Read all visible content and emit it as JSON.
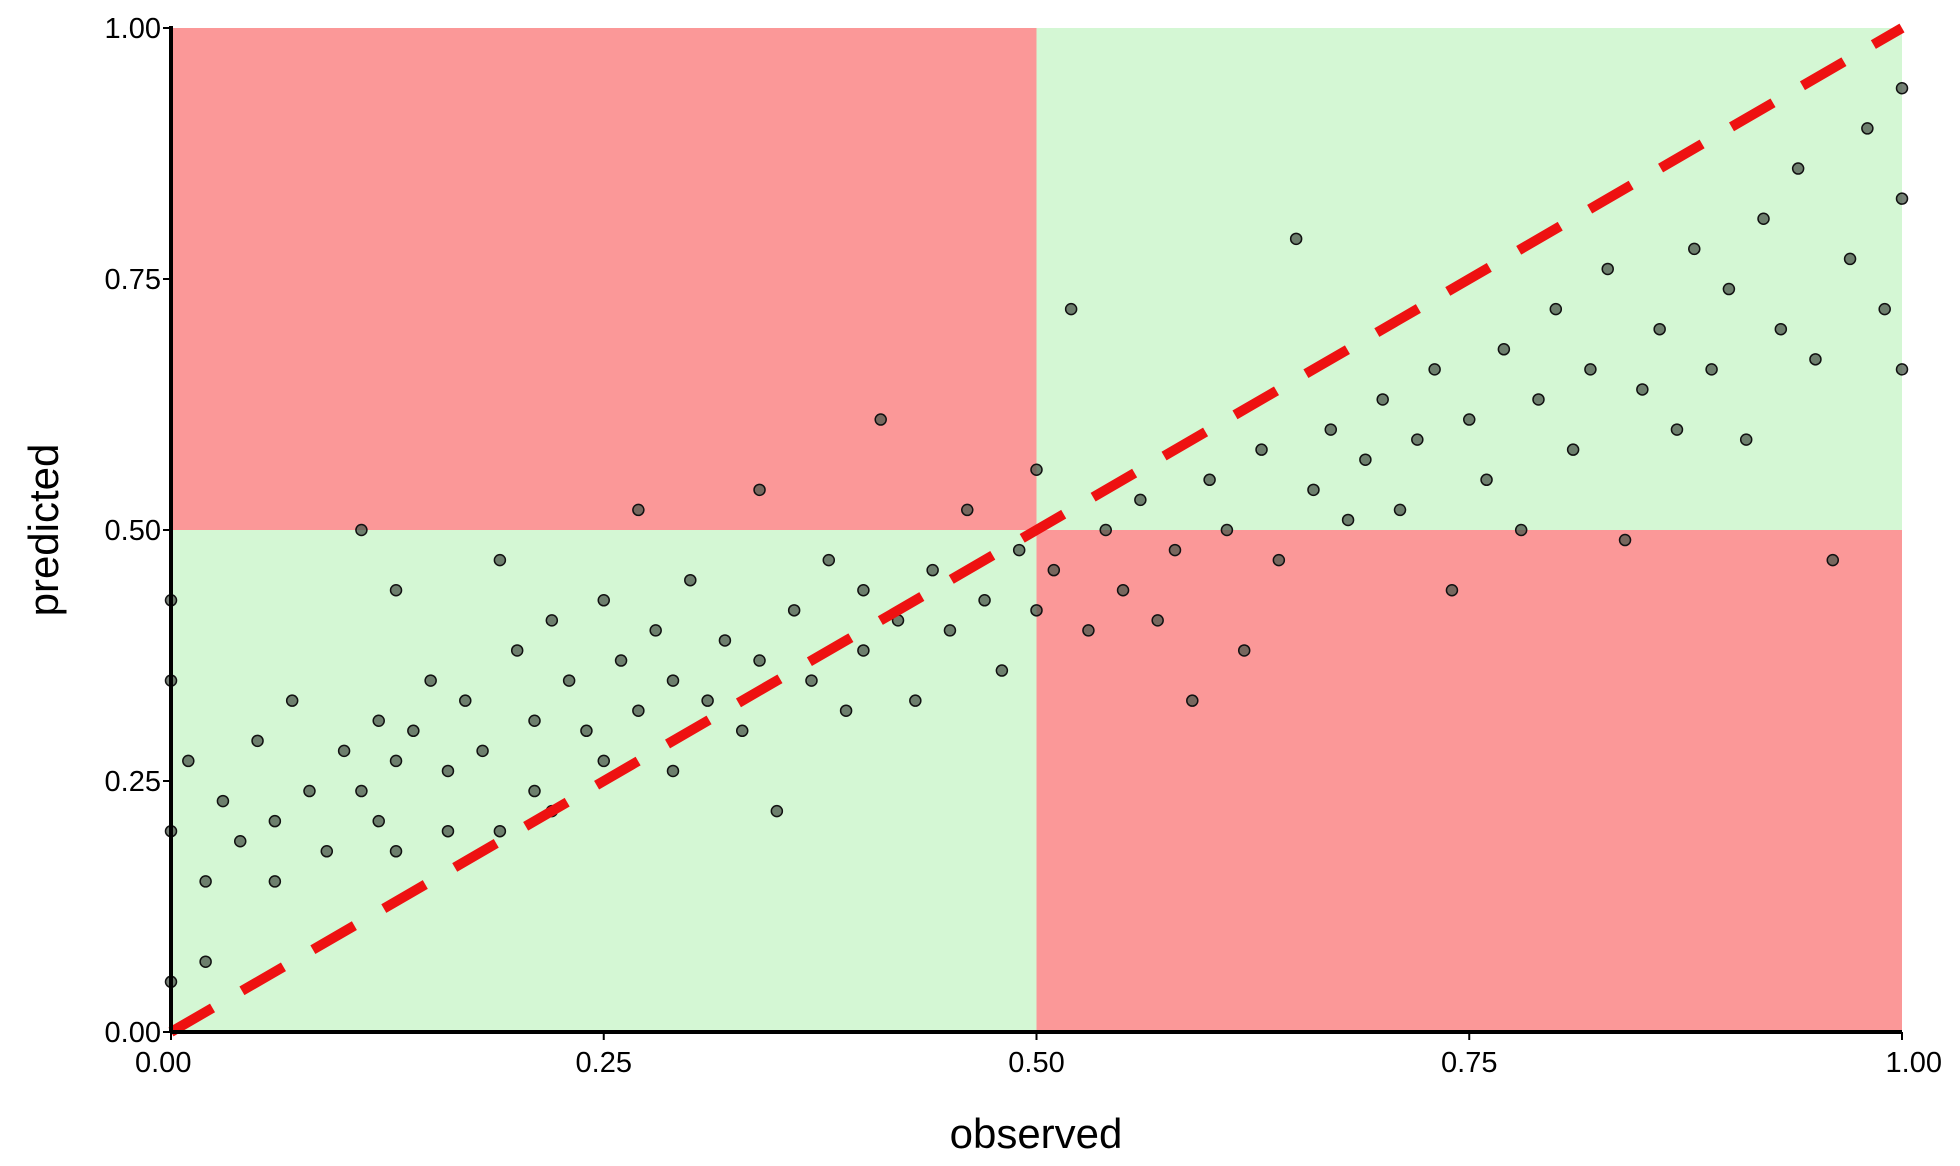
{
  "chart_data": {
    "type": "scatter",
    "xlabel": "observed",
    "ylabel": "predicted",
    "xlim": [
      0,
      1
    ],
    "ylim": [
      0,
      1
    ],
    "xticks": [
      {
        "value": 0,
        "label": "0.00"
      },
      {
        "value": 0.25,
        "label": "0.25"
      },
      {
        "value": 0.5,
        "label": "0.50"
      },
      {
        "value": 0.75,
        "label": "0.75"
      },
      {
        "value": 1,
        "label": "1.00"
      }
    ],
    "yticks": [
      {
        "value": 0,
        "label": "0.00"
      },
      {
        "value": 0.25,
        "label": "0.25"
      },
      {
        "value": 0.5,
        "label": "0.50"
      },
      {
        "value": 0.75,
        "label": "0.75"
      },
      {
        "value": 1,
        "label": "1.00"
      }
    ],
    "regions": [
      {
        "x": [
          0,
          0.5
        ],
        "y": [
          0.5,
          1
        ],
        "color": "#fb9898"
      },
      {
        "x": [
          0.5,
          1
        ],
        "y": [
          0.5,
          1
        ],
        "color": "#d4f7d4"
      },
      {
        "x": [
          0,
          0.5
        ],
        "y": [
          0,
          0.5
        ],
        "color": "#d4f7d4"
      },
      {
        "x": [
          0.5,
          1
        ],
        "y": [
          0,
          0.5
        ],
        "color": "#fb9898"
      }
    ],
    "reference_line": {
      "x": [
        0,
        1
      ],
      "y": [
        0,
        1
      ],
      "color": "#ee1111"
    },
    "color": "#4b574b",
    "x": [
      0.0,
      0.0,
      0.0,
      0.0,
      0.01,
      0.02,
      0.02,
      0.03,
      0.04,
      0.05,
      0.06,
      0.06,
      0.07,
      0.08,
      0.09,
      0.1,
      0.11,
      0.11,
      0.12,
      0.12,
      0.13,
      0.13,
      0.13,
      0.14,
      0.15,
      0.16,
      0.16,
      0.17,
      0.18,
      0.19,
      0.19,
      0.2,
      0.21,
      0.21,
      0.22,
      0.22,
      0.23,
      0.24,
      0.25,
      0.25,
      0.26,
      0.27,
      0.27,
      0.28,
      0.29,
      0.29,
      0.3,
      0.31,
      0.32,
      0.33,
      0.34,
      0.34,
      0.35,
      0.36,
      0.37,
      0.38,
      0.39,
      0.4,
      0.4,
      0.41,
      0.42,
      0.43,
      0.44,
      0.45,
      0.46,
      0.47,
      0.48,
      0.49,
      0.5,
      0.5,
      0.51,
      0.52,
      0.53,
      0.54,
      0.55,
      0.56,
      0.57,
      0.58,
      0.59,
      0.6,
      0.61,
      0.62,
      0.63,
      0.64,
      0.65,
      0.66,
      0.67,
      0.68,
      0.69,
      0.7,
      0.71,
      0.72,
      0.73,
      0.74,
      0.75,
      0.76,
      0.77,
      0.78,
      0.79,
      0.8,
      0.81,
      0.82,
      0.83,
      0.84,
      0.85,
      0.86,
      0.87,
      0.88,
      0.89,
      0.9,
      0.91,
      0.92,
      0.93,
      0.94,
      0.95,
      0.96,
      0.97,
      0.98,
      0.99,
      1.0,
      1.0,
      1.0
    ],
    "y": [
      0.05,
      0.2,
      0.35,
      0.43,
      0.27,
      0.15,
      0.07,
      0.23,
      0.19,
      0.29,
      0.21,
      0.15,
      0.33,
      0.24,
      0.18,
      0.28,
      0.5,
      0.24,
      0.31,
      0.21,
      0.44,
      0.27,
      0.18,
      0.3,
      0.35,
      0.26,
      0.2,
      0.33,
      0.28,
      0.47,
      0.2,
      0.38,
      0.31,
      0.24,
      0.41,
      0.22,
      0.35,
      0.3,
      0.43,
      0.27,
      0.37,
      0.52,
      0.32,
      0.4,
      0.35,
      0.26,
      0.45,
      0.33,
      0.39,
      0.3,
      0.54,
      0.37,
      0.22,
      0.42,
      0.35,
      0.47,
      0.32,
      0.44,
      0.38,
      0.61,
      0.41,
      0.33,
      0.46,
      0.4,
      0.52,
      0.43,
      0.36,
      0.48,
      0.56,
      0.42,
      0.46,
      0.72,
      0.4,
      0.5,
      0.44,
      0.53,
      0.41,
      0.48,
      0.33,
      0.55,
      0.5,
      0.38,
      0.58,
      0.47,
      0.79,
      0.54,
      0.6,
      0.51,
      0.57,
      0.63,
      0.52,
      0.59,
      0.66,
      0.44,
      0.61,
      0.55,
      0.68,
      0.5,
      0.63,
      0.72,
      0.58,
      0.66,
      0.76,
      0.49,
      0.64,
      0.7,
      0.6,
      0.78,
      0.66,
      0.74,
      0.59,
      0.81,
      0.7,
      0.86,
      0.67,
      0.47,
      0.77,
      0.9,
      0.72,
      0.83,
      0.94,
      0.66
    ]
  }
}
